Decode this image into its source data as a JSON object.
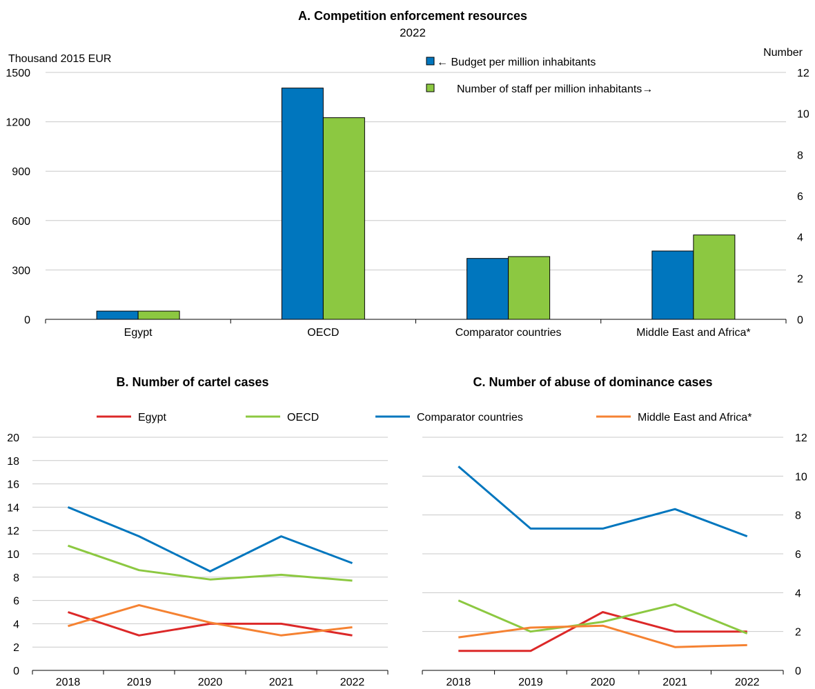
{
  "chart_data": [
    {
      "type": "bar",
      "title": "A. Competition enforcement resources",
      "subtitle": "2022",
      "ylabel_left": "Thousand 2015 EUR",
      "ylabel_right": "Number",
      "categories": [
        "Egypt",
        "OECD",
        "Comparator countries",
        "Middle East and Africa*"
      ],
      "ylim_left": [
        0,
        1500
      ],
      "yticks_left": [
        "0",
        "300",
        "600",
        "900",
        "1200",
        "1500"
      ],
      "ylim_right": [
        0,
        12
      ],
      "yticks_right": [
        "0",
        "2",
        "4",
        "6",
        "8",
        "10",
        "12"
      ],
      "grid": true,
      "legend_position": "top-right",
      "series": [
        {
          "name": "← Budget per million inhabitants",
          "axis": "left",
          "color": "#0076BE",
          "values": [
            50,
            1405,
            370,
            415
          ]
        },
        {
          "name": "Number of staff per million inhabitants→",
          "axis": "right",
          "color": "#8CC841",
          "values": [
            0.4,
            9.8,
            3.05,
            4.1
          ]
        }
      ]
    },
    {
      "type": "line",
      "title": "B. Number of cartel cases",
      "x": [
        "2018",
        "2019",
        "2020",
        "2021",
        "2022"
      ],
      "ylim": [
        0,
        20
      ],
      "yticks": [
        "0",
        "2",
        "4",
        "6",
        "8",
        "10",
        "12",
        "14",
        "16",
        "18",
        "20"
      ],
      "grid": true,
      "series": [
        {
          "name": "Egypt",
          "color": "#DC2828",
          "values": [
            5,
            3,
            4,
            4,
            3
          ]
        },
        {
          "name": "OECD",
          "color": "#8CC841",
          "values": [
            10.7,
            8.6,
            7.8,
            8.2,
            7.7
          ]
        },
        {
          "name": "Comparator countries",
          "color": "#0076BE",
          "values": [
            14,
            11.5,
            8.5,
            11.5,
            9.2
          ]
        },
        {
          "name": "Middle East and Africa*",
          "color": "#F58232",
          "values": [
            3.8,
            5.6,
            4.1,
            3,
            3.7
          ]
        }
      ]
    },
    {
      "type": "line",
      "title": "C. Number of abuse of dominance cases",
      "x": [
        "2018",
        "2019",
        "2020",
        "2021",
        "2022"
      ],
      "ylim": [
        0,
        12
      ],
      "yticks": [
        "0",
        "2",
        "4",
        "6",
        "8",
        "10",
        "12"
      ],
      "grid": true,
      "series": [
        {
          "name": "Egypt",
          "color": "#DC2828",
          "values": [
            1,
            1,
            3,
            2,
            2
          ]
        },
        {
          "name": "OECD",
          "color": "#8CC841",
          "values": [
            3.6,
            2,
            2.5,
            3.4,
            1.9
          ]
        },
        {
          "name": "Comparator countries",
          "color": "#0076BE",
          "values": [
            10.5,
            7.3,
            7.3,
            8.3,
            6.9
          ]
        },
        {
          "name": "Middle East and Africa*",
          "color": "#F58232",
          "values": [
            1.7,
            2.2,
            2.3,
            1.2,
            1.3
          ]
        }
      ]
    }
  ],
  "legend_bottom": [
    "Egypt",
    "OECD",
    "Comparator countries",
    "Middle East and Africa*"
  ]
}
